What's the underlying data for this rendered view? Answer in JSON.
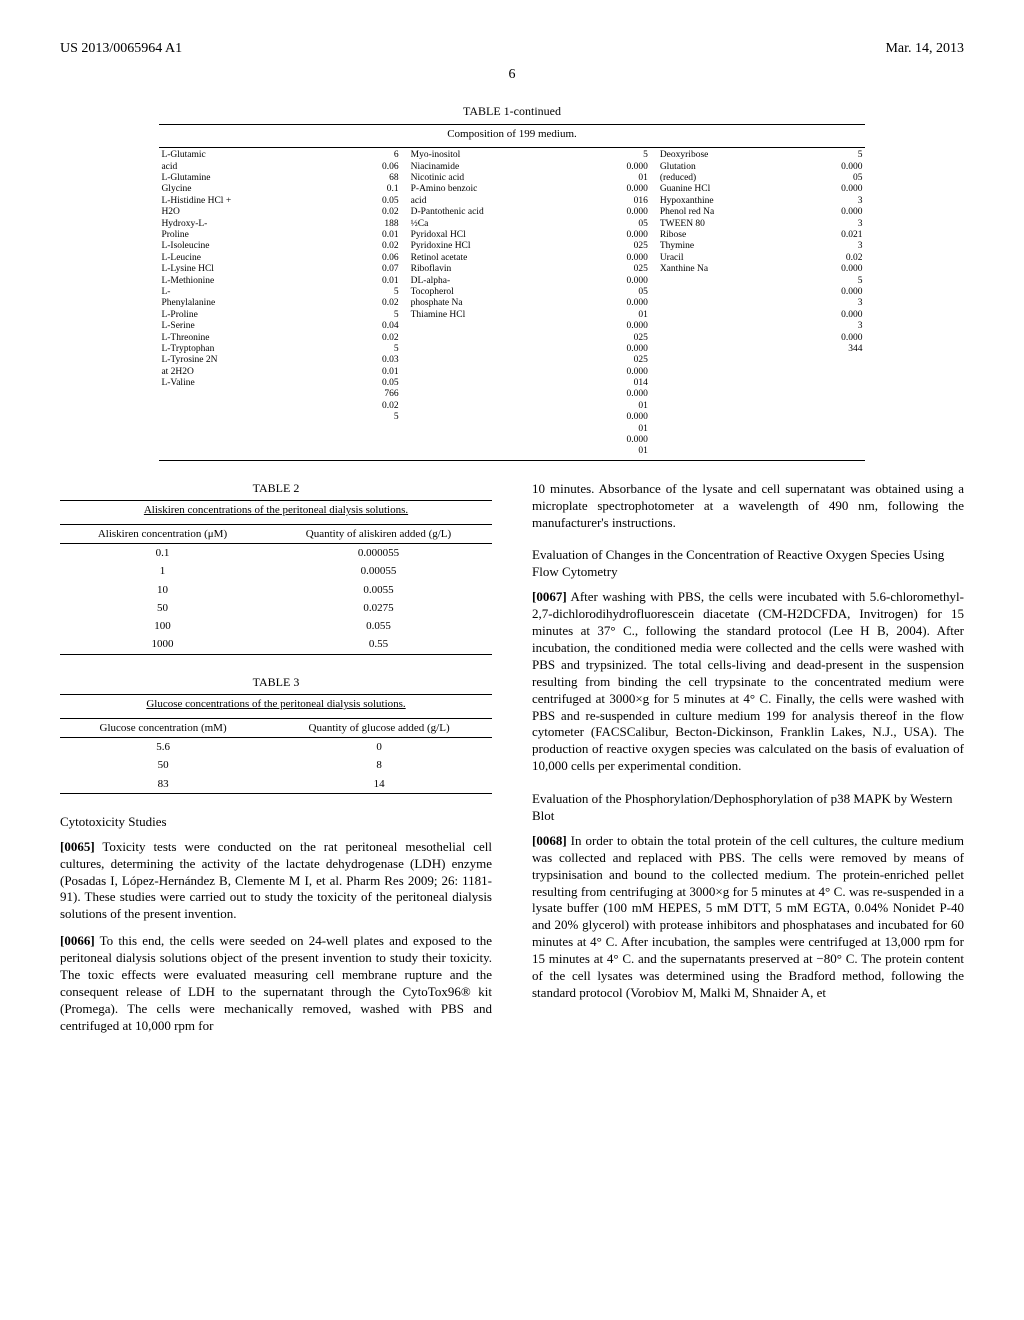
{
  "header": {
    "left": "US 2013/0065964 A1",
    "right": "Mar. 14, 2013"
  },
  "page_number": "6",
  "table1": {
    "title": "TABLE 1-continued",
    "caption": "Composition of 199 medium.",
    "col1_labels": [
      "L-Glutamic acid",
      "L-Glutamine",
      "Glycine",
      "L-Histidine HCl + H2O",
      "Hydroxy-L-Proline",
      "L-Isoleucine",
      "L-Leucine",
      "L-Lysine HCl",
      "L-Methionine",
      "L-Phenylalanine",
      "L-Proline",
      "L-Serine",
      "L-Threonine",
      "L-Tryptophan",
      "L-Tyrosine 2N at 2H2O",
      "L-Valine",
      "",
      "",
      ""
    ],
    "col1_vals": [
      "6",
      "0.06",
      "68",
      "0.1",
      "0.05",
      "0.02",
      "188",
      "0.01",
      "0.02",
      "0.06",
      "0.07",
      "0.01",
      "5",
      "0.02",
      "5",
      "0.04",
      "0.02",
      "5",
      "0.03",
      "0.01",
      "0.05",
      "766",
      "0.02",
      "5"
    ],
    "col2_labels": [
      "Myo-inositol",
      "Niacinamide",
      "Nicotinic acid",
      "P-Amino benzoic acid",
      "D-Pantothenic acid ½Ca",
      "Pyridoxal HCl",
      "Pyridoxine HCl",
      "Retinol acetate",
      "Riboflavin",
      "DL-alpha-Tocopherol phosphate Na",
      "Thiamine HCl"
    ],
    "col2_vals": [
      "5",
      "0.000 01",
      "0.000 016",
      "0.000",
      "05",
      "0.000 025",
      "0.000 025",
      "0.000 05",
      "0.000 01",
      "0.000",
      "025",
      "0.000 025",
      "0.000 014",
      "0.000 01",
      "0.000 01",
      "0.000 01"
    ],
    "col3_labels": [
      "Deoxyribose",
      "Glutation (reduced)",
      "Guanine HCl",
      "Hypoxanthine",
      "Phenol red Na",
      "TWEEN 80",
      "Ribose",
      "Thymine",
      "Uracil",
      "Xanthine Na"
    ],
    "col3_vals": [
      "5",
      "0.000 05",
      "0.000 3",
      "0.000 3",
      "0.021",
      "3",
      "0.02",
      "0.000 5",
      "0.000 3",
      "0.000 344"
    ]
  },
  "table2": {
    "title": "TABLE 2",
    "caption": "Aliskiren concentrations of the peritoneal dialysis solutions.",
    "columns": [
      "Aliskiren concentration (μM)",
      "Quantity of aliskiren added (g/L)"
    ],
    "rows": [
      [
        "0.1",
        "0.000055"
      ],
      [
        "1",
        "0.00055"
      ],
      [
        "10",
        "0.0055"
      ],
      [
        "50",
        "0.0275"
      ],
      [
        "100",
        "0.055"
      ],
      [
        "1000",
        "0.55"
      ]
    ]
  },
  "table3": {
    "title": "TABLE 3",
    "caption": "Glucose concentrations of the peritoneal dialysis solutions.",
    "columns": [
      "Glucose concentration (mM)",
      "Quantity of glucose added (g/L)"
    ],
    "rows": [
      [
        "5.6",
        "0"
      ],
      [
        "50",
        "8"
      ],
      [
        "83",
        "14"
      ]
    ]
  },
  "sections": {
    "cytotoxicity_title": "Cytotoxicity Studies",
    "para0065_num": "[0065]",
    "para0065": " Toxicity tests were conducted on the rat peritoneal mesothelial cell cultures, determining the activity of the lactate dehydrogenase (LDH) enzyme (Posadas I, López-Hernández B, Clemente M I, et al. Pharm Res 2009; 26: 1181-91). These studies were carried out to study the toxicity of the peritoneal dialysis solutions of the present invention.",
    "para0066_num": "[0066]",
    "para0066": " To this end, the cells were seeded on 24-well plates and exposed to the peritoneal dialysis solutions object of the present invention to study their toxicity. The toxic effects were evaluated measuring cell membrane rupture and the consequent release of LDH to the supernatant through the CytoTox96® kit (Promega). The cells were mechanically removed, washed with PBS and centrifuged at 10,000 rpm for",
    "para_right_top": "10 minutes. Absorbance of the lysate and cell supernatant was obtained using a microplate spectrophotometer at a wavelength of 490 nm, following the manufacturer's instructions.",
    "ros_title": "Evaluation of Changes in the Concentration of Reactive Oxygen Species Using Flow Cytometry",
    "para0067_num": "[0067]",
    "para0067": " After washing with PBS, the cells were incubated with 5.6-chloromethyl-2,7-dichlorodihydrofluorescein diacetate (CM-H2DCFDA, Invitrogen) for 15 minutes at 37° C., following the standard protocol (Lee H B, 2004). After incubation, the conditioned media were collected and the cells were washed with PBS and trypsinized. The total cells-living and dead-present in the suspension resulting from binding the cell trypsinate to the concentrated medium were centrifuged at 3000×g for 5 minutes at 4° C. Finally, the cells were washed with PBS and re-suspended in culture medium 199 for analysis thereof in the flow cytometer (FACSCalibur, Becton-Dickinson, Franklin Lakes, N.J., USA). The production of reactive oxygen species was calculated on the basis of evaluation of 10,000 cells per experimental condition.",
    "p38_title": "Evaluation of the Phosphorylation/Dephosphorylation of p38 MAPK by Western Blot",
    "para0068_num": "[0068]",
    "para0068": " In order to obtain the total protein of the cell cultures, the culture medium was collected and replaced with PBS. The cells were removed by means of trypsinisation and bound to the collected medium. The protein-enriched pellet resulting from centrifuging at 3000×g for 5 minutes at 4° C. was re-suspended in a lysate buffer (100 mM HEPES, 5 mM DTT, 5 mM EGTA, 0.04% Nonidet P-40 and 20% glycerol) with protease inhibitors and phosphatases and incubated for 60 minutes at 4° C. After incubation, the samples were centrifuged at 13,000 rpm for 15 minutes at 4° C. and the supernatants preserved at −80° C. The protein content of the cell lysates was determined using the Bradford method, following the standard protocol (Vorobiov M, Malki M, Shnaider A, et"
  }
}
